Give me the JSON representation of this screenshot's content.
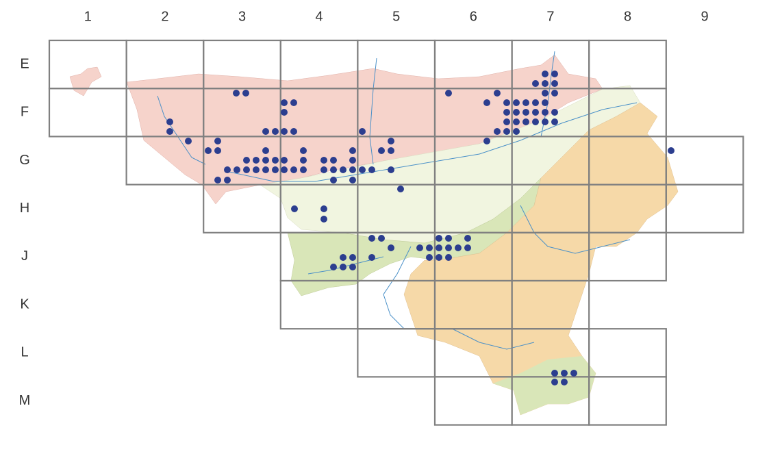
{
  "columns": [
    "1",
    "2",
    "3",
    "4",
    "5",
    "6",
    "7",
    "8",
    "9"
  ],
  "rows": [
    "E",
    "F",
    "G",
    "H",
    "J",
    "K",
    "L",
    "M"
  ]
}
